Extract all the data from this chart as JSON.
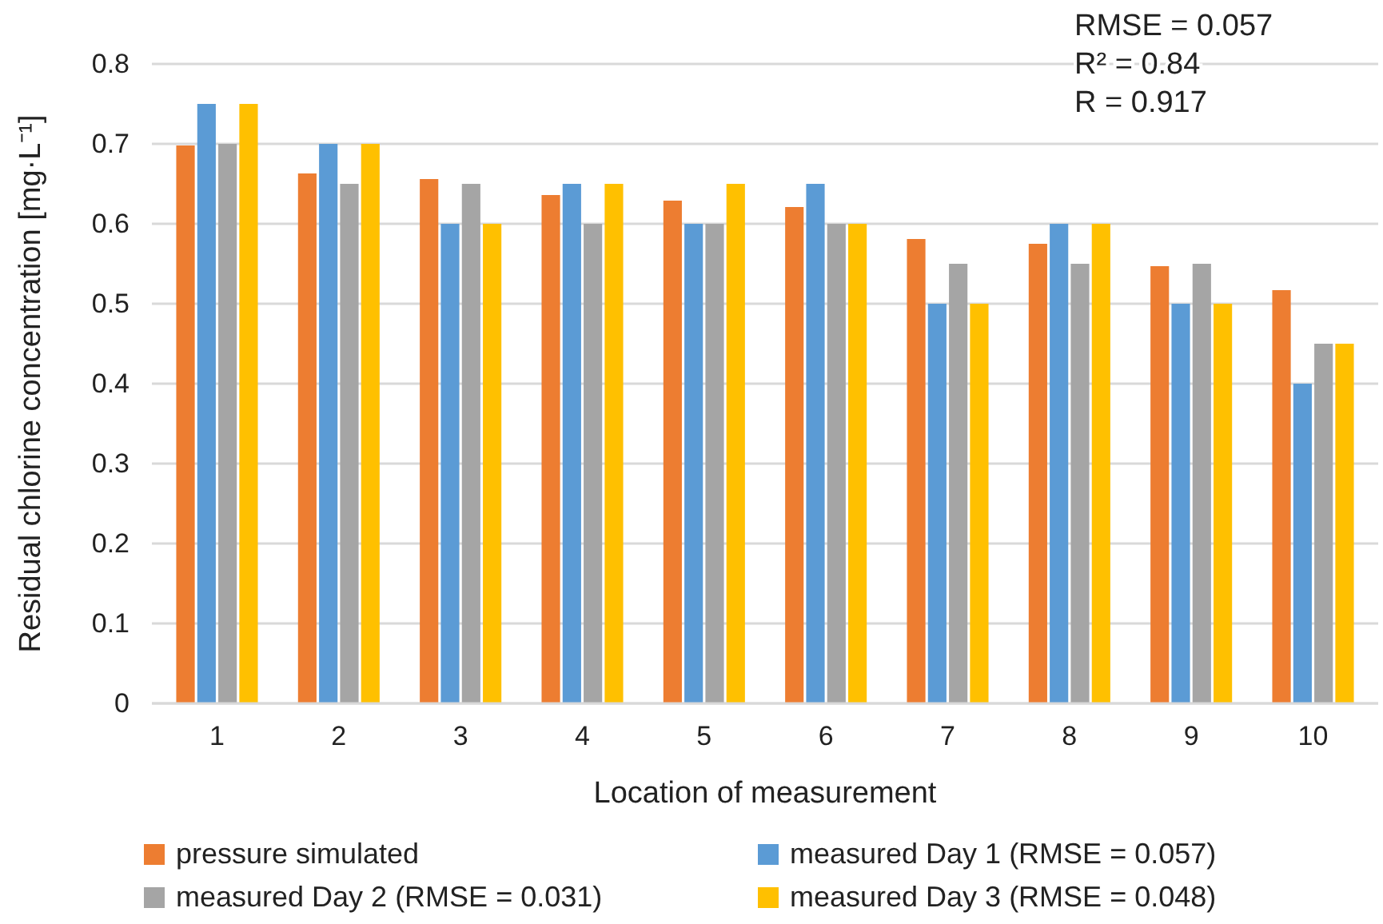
{
  "chart_data": {
    "type": "bar",
    "xlabel": "Location of measurement",
    "ylabel": "Residual chlorine concentration [mg·L⁻¹]",
    "categories": [
      "1",
      "2",
      "3",
      "4",
      "5",
      "6",
      "7",
      "8",
      "9",
      "10"
    ],
    "series": [
      {
        "name": "pressure simulated",
        "color": "#ed7d31",
        "values": [
          0.698,
          0.663,
          0.656,
          0.636,
          0.629,
          0.621,
          0.581,
          0.575,
          0.547,
          0.517
        ]
      },
      {
        "name": "measured Day 1 (RMSE = 0.057)",
        "color": "#5b9bd5",
        "values": [
          0.75,
          0.7,
          0.6,
          0.65,
          0.6,
          0.65,
          0.5,
          0.6,
          0.5,
          0.4
        ]
      },
      {
        "name": "measured Day 2 (RMSE = 0.031)",
        "color": "#a5a5a5",
        "values": [
          0.7,
          0.65,
          0.65,
          0.6,
          0.6,
          0.6,
          0.55,
          0.55,
          0.55,
          0.45
        ]
      },
      {
        "name": "measured Day 3 (RMSE = 0.048)",
        "color": "#ffc000",
        "values": [
          0.75,
          0.7,
          0.6,
          0.65,
          0.65,
          0.6,
          0.5,
          0.6,
          0.5,
          0.45
        ]
      }
    ],
    "ylim": [
      0,
      0.8
    ],
    "yticks": [
      {
        "value": 0,
        "label": "0"
      },
      {
        "value": 0.1,
        "label": "0.1"
      },
      {
        "value": 0.2,
        "label": "0.2"
      },
      {
        "value": 0.3,
        "label": "0.3"
      },
      {
        "value": 0.4,
        "label": "0.4"
      },
      {
        "value": 0.5,
        "label": "0.5"
      },
      {
        "value": 0.6,
        "label": "0.6"
      },
      {
        "value": 0.7,
        "label": "0.7"
      },
      {
        "value": 0.8,
        "label": "0.8"
      }
    ],
    "grid": "y",
    "legend": "bottom",
    "annotations": [
      "RMSE = 0.057",
      "R² = 0.84",
      "R = 0.917"
    ]
  }
}
